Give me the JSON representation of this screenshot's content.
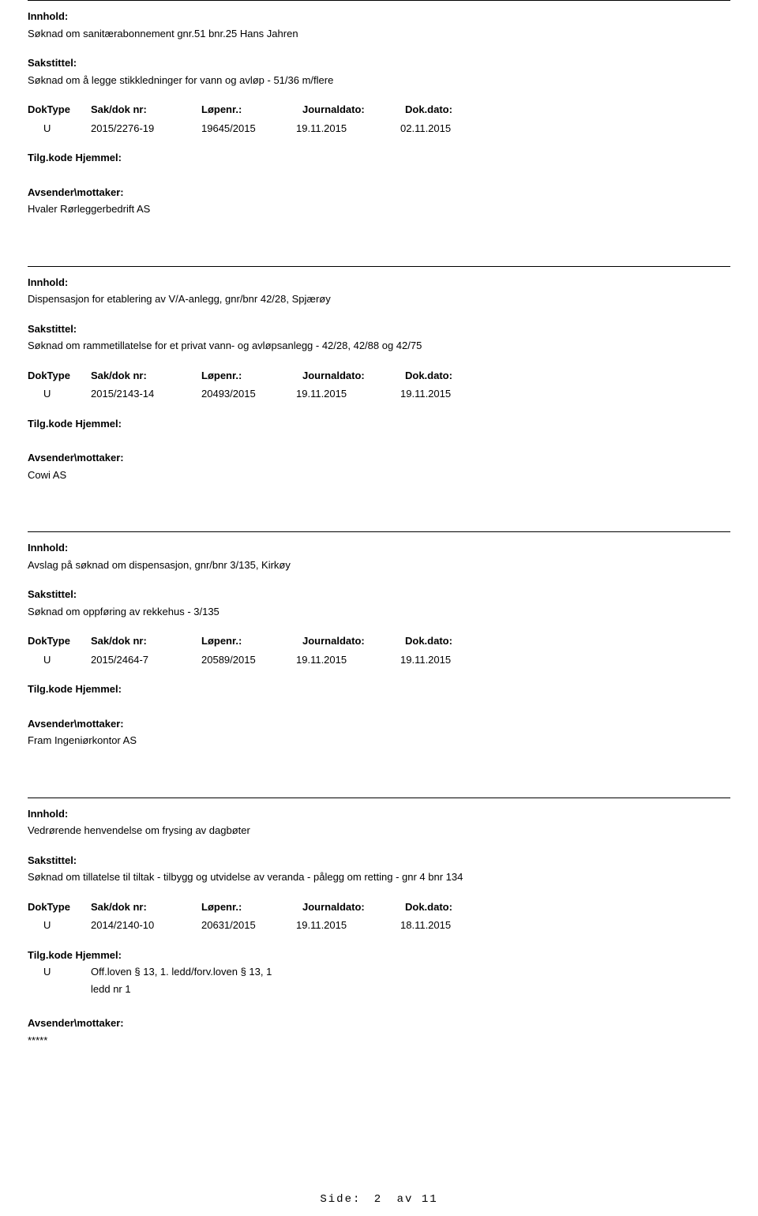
{
  "labels": {
    "innhold": "Innhold:",
    "sakstittel": "Sakstittel:",
    "doktype": "DokType",
    "sakdok": "Sak/dok nr:",
    "lopenr": "Løpenr.:",
    "journaldato": "Journaldato:",
    "dokdato": "Dok.dato:",
    "tilgkode": "Tilg.kode",
    "hjemmel": "Hjemmel:",
    "avsender": "Avsender\\mottaker:"
  },
  "records": [
    {
      "innhold": "Søknad om sanitærabonnement gnr.51 bnr.25 Hans Jahren",
      "sakstittel": "Søknad om å legge stikkledninger for vann og avløp - 51/36 m/flere",
      "doktype": "U",
      "sakdok": "2015/2276-19",
      "lopenr": "19645/2015",
      "journaldato": "19.11.2015",
      "dokdato": "02.11.2015",
      "tilg_u": "",
      "tilg_text": "",
      "tilg_ledd": "",
      "avsender": "Hvaler Rørleggerbedrift AS"
    },
    {
      "innhold": "Dispensasjon for etablering av V/A-anlegg, gnr/bnr 42/28, Spjærøy",
      "sakstittel": "Søknad om rammetillatelse for et privat vann- og avløpsanlegg - 42/28, 42/88 og 42/75",
      "doktype": "U",
      "sakdok": "2015/2143-14",
      "lopenr": "20493/2015",
      "journaldato": "19.11.2015",
      "dokdato": "19.11.2015",
      "tilg_u": "",
      "tilg_text": "",
      "tilg_ledd": "",
      "avsender": "Cowi AS"
    },
    {
      "innhold": "Avslag på søknad om dispensasjon, gnr/bnr 3/135, Kirkøy",
      "sakstittel": "Søknad om oppføring av rekkehus - 3/135",
      "doktype": "U",
      "sakdok": "2015/2464-7",
      "lopenr": "20589/2015",
      "journaldato": "19.11.2015",
      "dokdato": "19.11.2015",
      "tilg_u": "",
      "tilg_text": "",
      "tilg_ledd": "",
      "avsender": "Fram Ingeniørkontor AS"
    },
    {
      "innhold": "Vedrørende henvendelse om frysing av dagbøter",
      "sakstittel": "Søknad om tillatelse til tiltak - tilbygg og utvidelse av veranda - pålegg om retting - gnr 4 bnr 134",
      "doktype": "U",
      "sakdok": "2014/2140-10",
      "lopenr": "20631/2015",
      "journaldato": "19.11.2015",
      "dokdato": "18.11.2015",
      "tilg_u": "U",
      "tilg_text": "Off.loven § 13, 1. ledd/forv.loven § 13, 1",
      "tilg_ledd": "ledd nr 1",
      "avsender": "*****"
    }
  ],
  "footer": {
    "side": "Side:",
    "page": "2",
    "av": "av",
    "total": "11"
  }
}
